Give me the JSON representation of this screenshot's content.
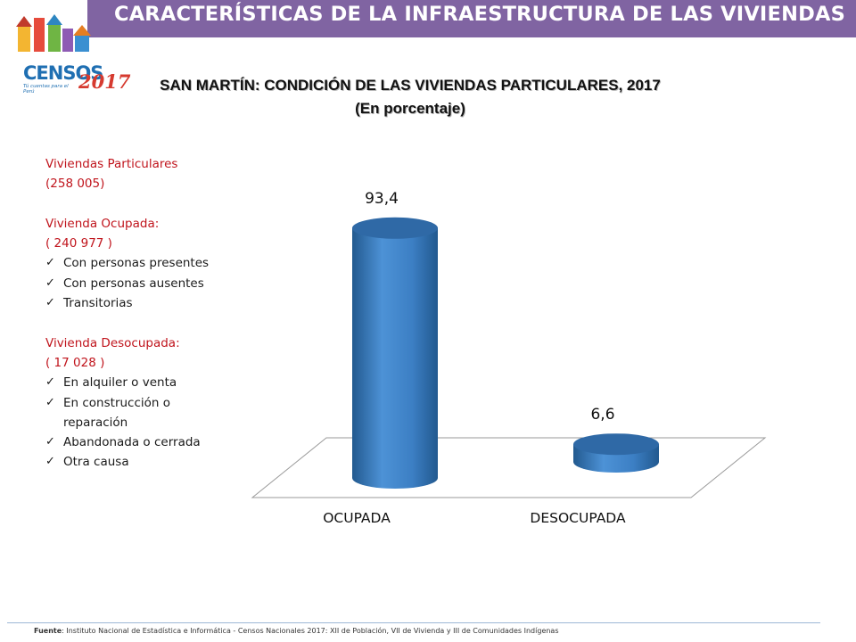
{
  "header": {
    "title": "CARACTERÍSTICAS DE LA INFRAESTRUCTURA DE LAS VIVIENDAS"
  },
  "logo": {
    "word": "CENSOS",
    "year": "2017",
    "tagline": "Tú cuentas para el Perú"
  },
  "colors": {
    "header": "#8064a2",
    "bar": "#3c7fc4",
    "bar_dark": "#22598f",
    "bar_top": "#2f69a6",
    "red_text": "#c0141c"
  },
  "chart_data": {
    "type": "bar",
    "title": "SAN MARTÍN: CONDICIÓN DE LAS VIVIENDAS PARTICULARES, 2017",
    "subtitle": "(En porcentaje)",
    "categories": [
      "OCUPADA",
      "DESOCUPADA"
    ],
    "values": [
      93.4,
      6.6
    ],
    "value_labels": [
      "93,4",
      "6,6"
    ],
    "ylim": [
      0,
      100
    ],
    "grid": false,
    "style": "3d-cylinder"
  },
  "notes": {
    "title": "Viviendas Particulares",
    "total": "(258 005)",
    "ocupada_label": "Vivienda Ocupada:",
    "ocupada_count": "( 240 977 )",
    "ocupada_items": [
      "Con personas presentes",
      "Con personas ausentes",
      "Transitorias"
    ],
    "desocupada_label": "Vivienda Desocupada:",
    "desocupada_count": "( 17 028 )",
    "desocupada_items": [
      "En alquiler o venta",
      "En construcción o",
      "reparación",
      "Abandonada o cerrada",
      "Otra causa"
    ]
  },
  "footer": {
    "label": "Fuente",
    "text": ": Instituto Nacional de Estadística e Informática - Censos Nacionales 2017: XII de Población, VII de Vivienda y III de Comunidades Indígenas"
  }
}
